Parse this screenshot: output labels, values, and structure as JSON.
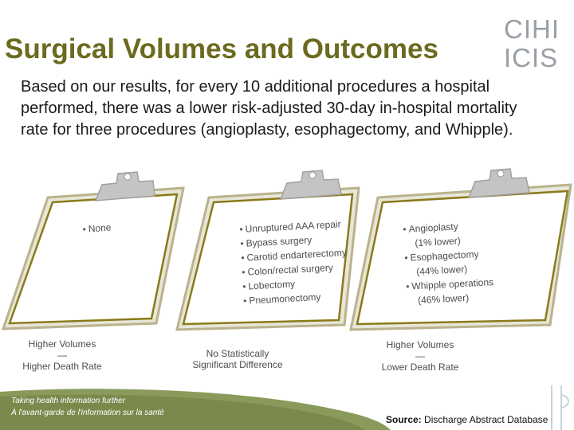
{
  "slide": {
    "title": "Surgical Volumes and Outcomes",
    "intro": "Based on our results, for every 10 additional procedures a hospital performed, there was a lower risk-adjusted 30-day in-hospital mortality rate for three procedures (angioplasty, esophagectomy, and Whipple)."
  },
  "logo": {
    "line1": "CIHI",
    "line2": "ICIS"
  },
  "boards": [
    {
      "items": [
        {
          "text": "None",
          "sub": ""
        }
      ],
      "caption_top": "Higher Volumes",
      "caption_dash": "—",
      "caption_bottom": "Higher Death Rate"
    },
    {
      "items": [
        {
          "text": "Unruptured AAA repair",
          "sub": ""
        },
        {
          "text": "Bypass surgery",
          "sub": ""
        },
        {
          "text": "Carotid endarterectomy",
          "sub": ""
        },
        {
          "text": "Colon/rectal surgery",
          "sub": ""
        },
        {
          "text": "Lobectomy",
          "sub": ""
        },
        {
          "text": "Pneumonectomy",
          "sub": ""
        }
      ],
      "caption_top": "No Statistically",
      "caption_dash": "",
      "caption_bottom": "Significant Difference"
    },
    {
      "items": [
        {
          "text": "Angioplasty",
          "sub": "(1% lower)"
        },
        {
          "text": "Esophagectomy",
          "sub": "(44% lower)"
        },
        {
          "text": "Whipple operations",
          "sub": "(46% lower)"
        }
      ],
      "caption_top": "Higher Volumes",
      "caption_dash": "—",
      "caption_bottom": "Lower Death Rate"
    }
  ],
  "footer": {
    "tagline_en": "Taking health information further",
    "tagline_fr": "À l'avant-garde de l'information sur la santé",
    "source_label": "Source:",
    "source_text": "Discharge Abstract Database"
  },
  "colors": {
    "title": "#6b6a1f",
    "board_outline": "#8a7a1a",
    "board_fill": "#ffffff",
    "clip": "#b8b8b8",
    "footer_green": "#8a9a5b"
  }
}
